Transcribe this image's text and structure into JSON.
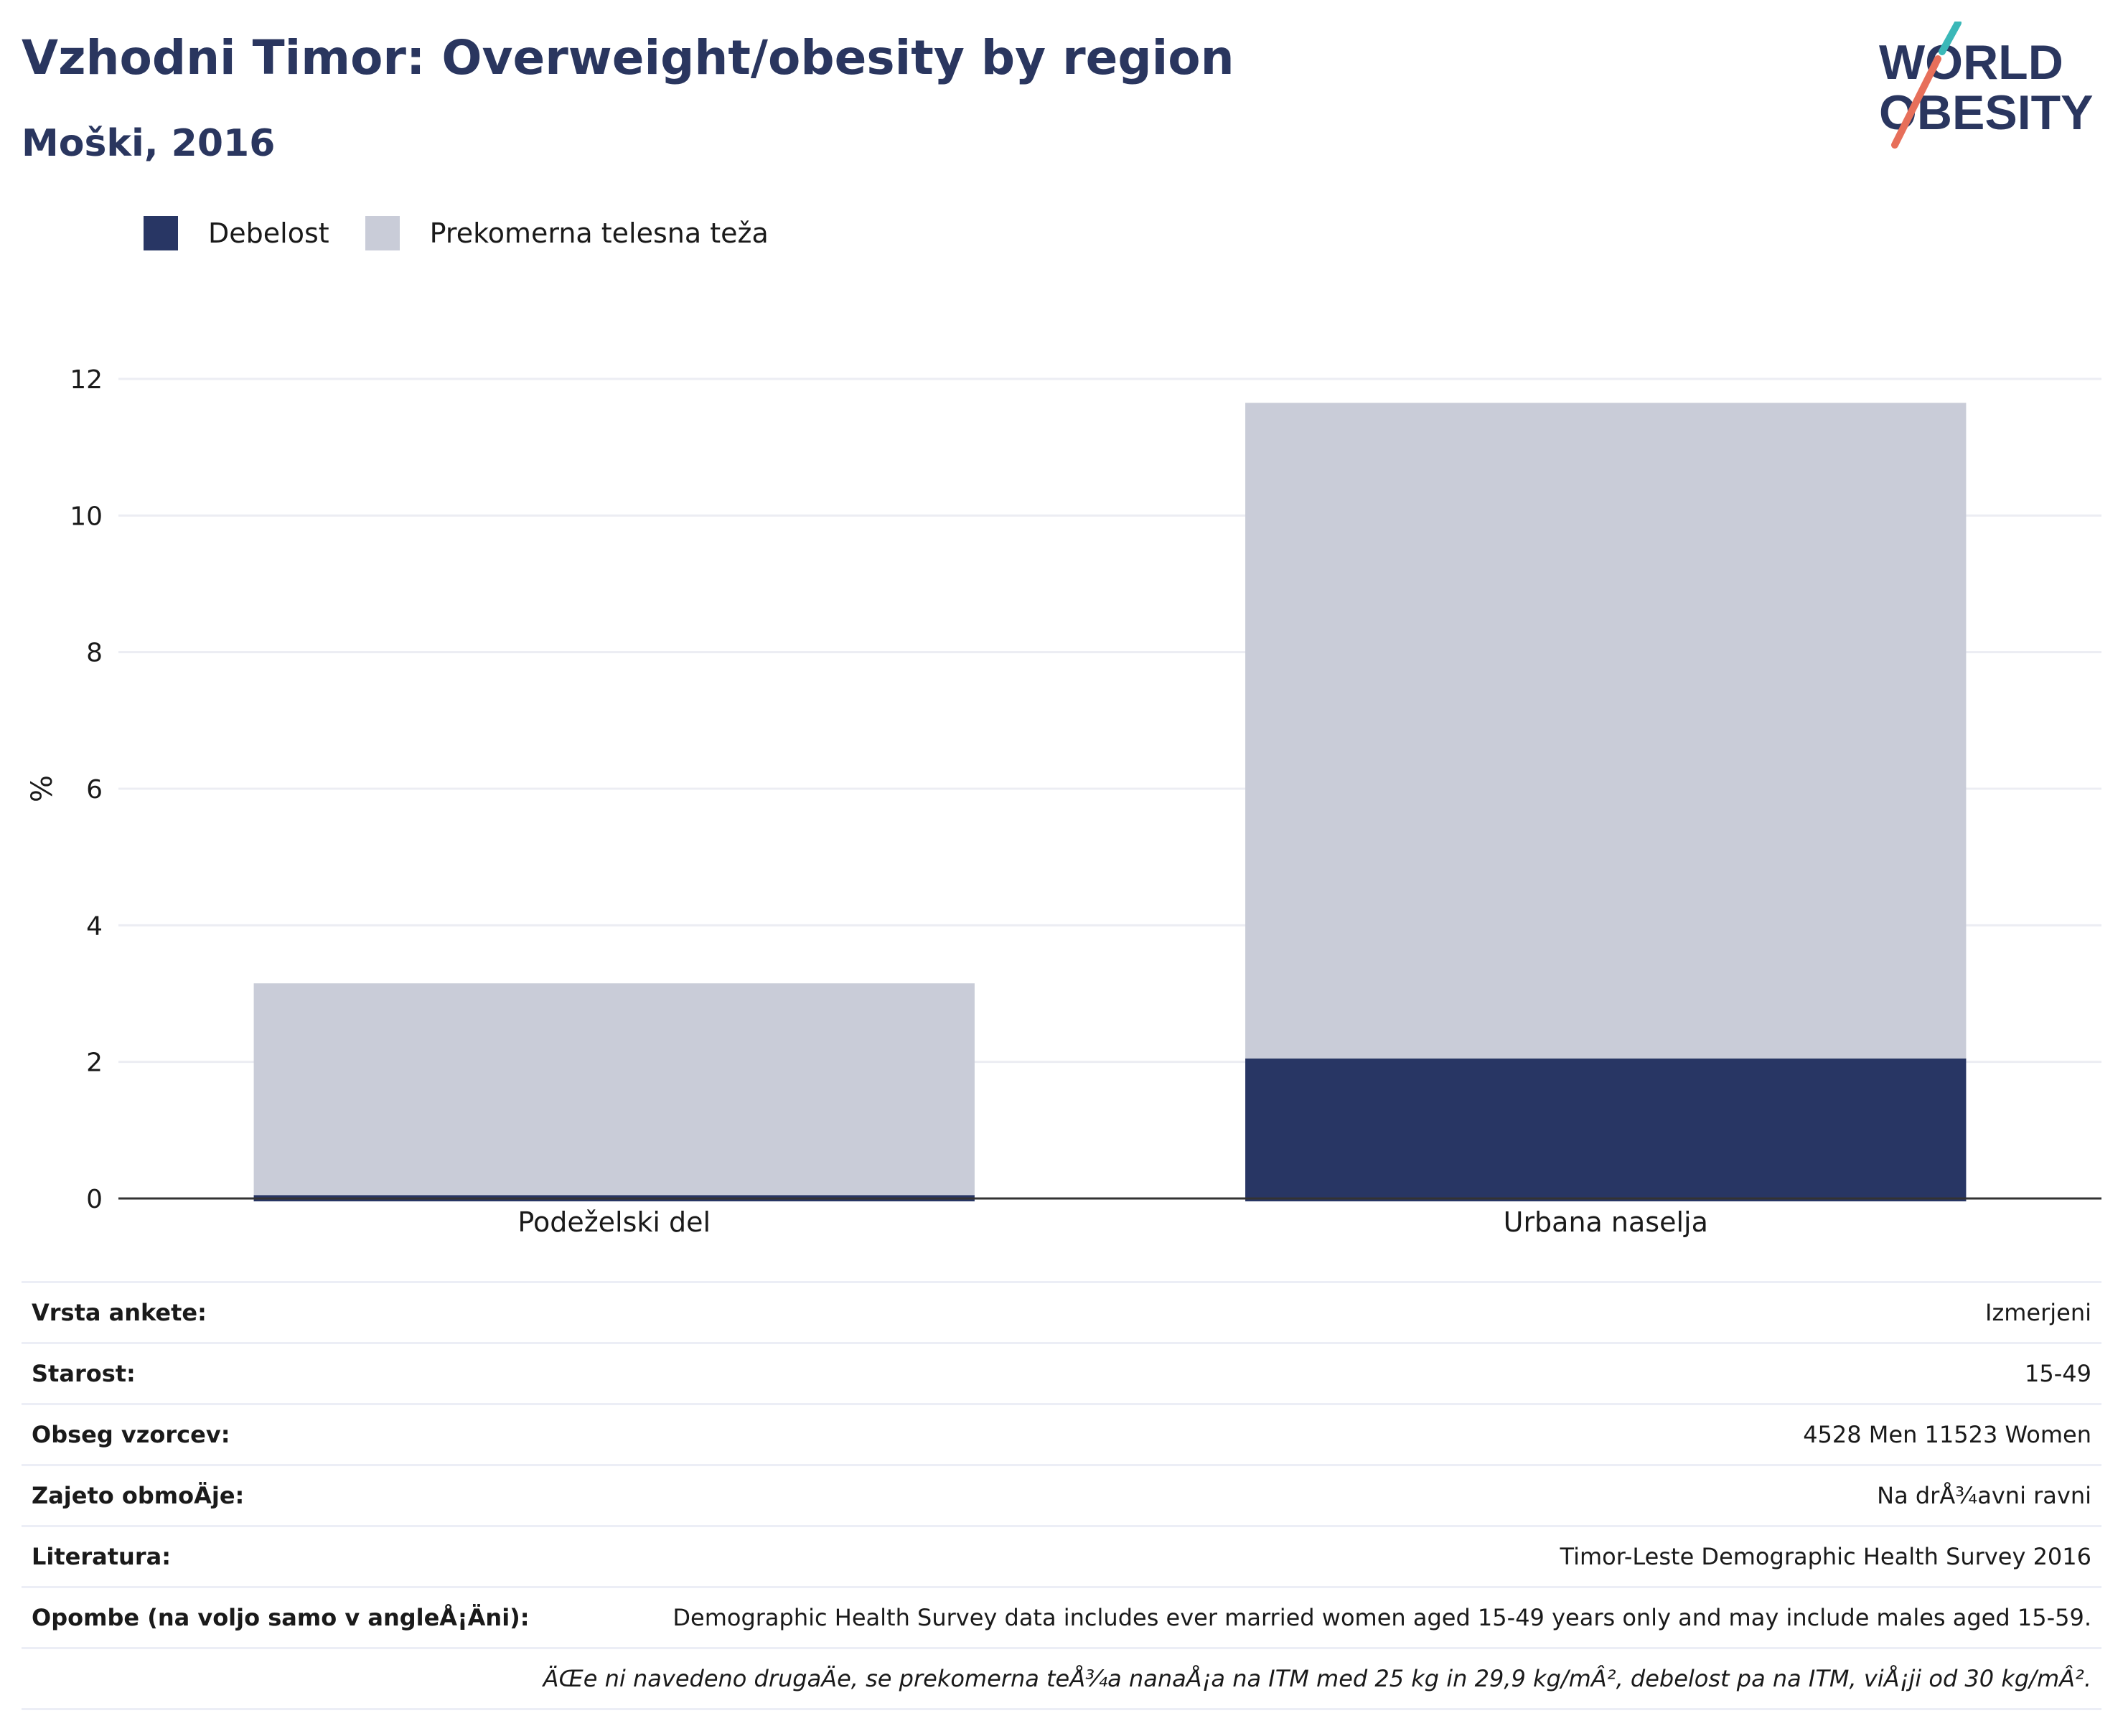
{
  "header": {
    "title": "Vzhodni Timor: Overweight/obesity by region",
    "subtitle": "Moški, 2016"
  },
  "logo": {
    "line1": "WORLD",
    "line2": "OBESITY",
    "colors": {
      "text": "#2a365f",
      "slash_teal": "#3bb8b8",
      "slash_coral": "#e76f5a"
    }
  },
  "colors": {
    "obesity": "#283664",
    "overweight": "#c9ccd8",
    "grid": "#ecedf3",
    "axis": "#333333"
  },
  "chart_data": {
    "type": "bar",
    "stacked": true,
    "categories": [
      "Podeželski del",
      "Urbana naselja"
    ],
    "series": [
      {
        "name": "Debelost",
        "values": [
          0.05,
          2.05
        ]
      },
      {
        "name": "Prekomerna telesna teža",
        "values": [
          3.1,
          9.6
        ]
      }
    ],
    "ylabel": "%",
    "ylim": [
      0,
      12
    ],
    "yticks": [
      0,
      2,
      4,
      6,
      8,
      10,
      12
    ],
    "grid": true,
    "legend_position": "top-left"
  },
  "meta": [
    {
      "label": "Vrsta ankete:",
      "value": "Izmerjeni"
    },
    {
      "label": "Starost:",
      "value": "15-49"
    },
    {
      "label": "Obseg vzorcev:",
      "value": "4528 Men 11523 Women"
    },
    {
      "label": "Zajeto obmoÄ\u001dje:",
      "value": "Na drÅ¾avni ravni"
    },
    {
      "label": "Literatura:",
      "value": "Timor-Leste Demographic Health Survey 2016"
    },
    {
      "label": "Opombe (na voljo samo v angleÅ¡Ä\u001dni):",
      "value": "Demographic Health Survey data includes ever married women aged 15-49 years only and may include males aged 15-59."
    }
  ],
  "note": "ÄŒe ni navedeno drugaÄ\u001de, se prekomerna teÅ¾a nanaÅ¡a na ITM med 25 kg in 29,9 kg/mÂ², debelost pa na ITM, viÅ¡ji od 30 kg/mÂ²."
}
